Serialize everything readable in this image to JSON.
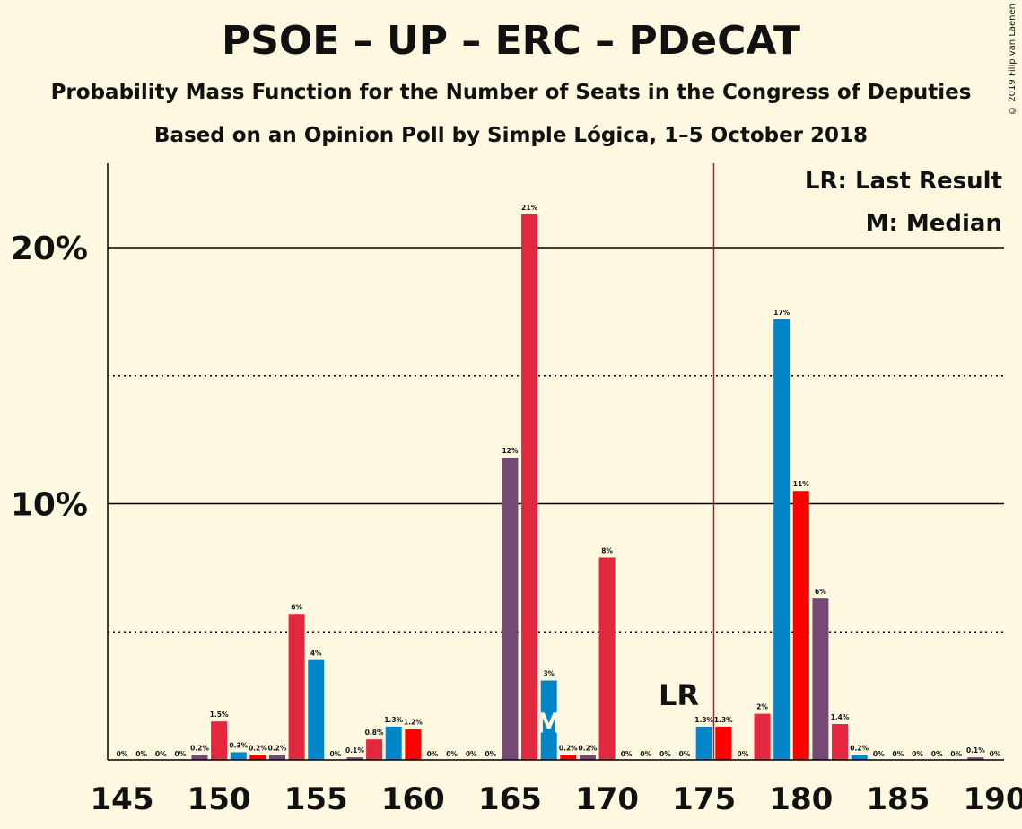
{
  "copyright": "© 2019 Filip van Laenen",
  "chart_data": {
    "type": "bar",
    "title": "PSOE – UP – ERC – PDeCAT",
    "subtitle": "Probability Mass Function for the Number of Seats in the Congress of Deputies",
    "subtitle2": "Based on an Opinion Poll by Simple Lógica, 1–5 October 2018",
    "xlabel": "",
    "ylabel": "",
    "xlim": [
      145,
      190
    ],
    "ylim": [
      0,
      23.3
    ],
    "x_ticks": [
      "145",
      "150",
      "155",
      "160",
      "165",
      "170",
      "175",
      "180",
      "185",
      "190"
    ],
    "y_ticks": [
      {
        "value": 10,
        "label": "10%"
      },
      {
        "value": 20,
        "label": "20%"
      }
    ],
    "dotted_lines": [
      5,
      15
    ],
    "colors": [
      "#e3273f",
      "#0285c9",
      "#ff0000",
      "#744a75"
    ],
    "bars": [
      {
        "seats": 145,
        "value": 0,
        "label": "0%",
        "color": 3
      },
      {
        "seats": 146,
        "value": 0,
        "label": "0%",
        "color": 0
      },
      {
        "seats": 147,
        "value": 0,
        "label": "0%",
        "color": 1
      },
      {
        "seats": 148,
        "value": 0,
        "label": "0%",
        "color": 2
      },
      {
        "seats": 149,
        "value": 0.2,
        "label": "0.2%",
        "color": 3
      },
      {
        "seats": 150,
        "value": 1.5,
        "label": "1.5%",
        "color": 0
      },
      {
        "seats": 151,
        "value": 0.3,
        "label": "0.3%",
        "color": 1
      },
      {
        "seats": 152,
        "value": 0.2,
        "label": "0.2%",
        "color": 2
      },
      {
        "seats": 153,
        "value": 0.2,
        "label": "0.2%",
        "color": 3
      },
      {
        "seats": 154,
        "value": 5.7,
        "label": "6%",
        "color": 0
      },
      {
        "seats": 155,
        "value": 3.9,
        "label": "4%",
        "color": 1
      },
      {
        "seats": 156,
        "value": 0,
        "label": "0%",
        "color": 2
      },
      {
        "seats": 157,
        "value": 0.1,
        "label": "0.1%",
        "color": 3
      },
      {
        "seats": 158,
        "value": 0.8,
        "label": "0.8%",
        "color": 0
      },
      {
        "seats": 159,
        "value": 1.3,
        "label": "1.3%",
        "color": 1
      },
      {
        "seats": 160,
        "value": 1.2,
        "label": "1.2%",
        "color": 2
      },
      {
        "seats": 161,
        "value": 0,
        "label": "0%",
        "color": 3
      },
      {
        "seats": 162,
        "value": 0,
        "label": "0%",
        "color": 0
      },
      {
        "seats": 163,
        "value": 0,
        "label": "0%",
        "color": 1
      },
      {
        "seats": 164,
        "value": 0,
        "label": "0%",
        "color": 2
      },
      {
        "seats": 165,
        "value": 11.8,
        "label": "12%",
        "color": 3
      },
      {
        "seats": 166,
        "value": 21.3,
        "label": "21%",
        "color": 0
      },
      {
        "seats": 167,
        "value": 3.1,
        "label": "3%",
        "color": 1
      },
      {
        "seats": 168,
        "value": 0.2,
        "label": "0.2%",
        "color": 2
      },
      {
        "seats": 169,
        "value": 0.2,
        "label": "0.2%",
        "color": 3
      },
      {
        "seats": 170,
        "value": 7.9,
        "label": "8%",
        "color": 0
      },
      {
        "seats": 171,
        "value": 0,
        "label": "0%",
        "color": 1
      },
      {
        "seats": 172,
        "value": 0,
        "label": "0%",
        "color": 2
      },
      {
        "seats": 173,
        "value": 0,
        "label": "0%",
        "color": 3
      },
      {
        "seats": 174,
        "value": 0,
        "label": "0%",
        "color": 0
      },
      {
        "seats": 175,
        "value": 1.3,
        "label": "1.3%",
        "color": 1
      },
      {
        "seats": 176,
        "value": 1.3,
        "label": "1.3%",
        "color": 2
      },
      {
        "seats": 177,
        "value": 0,
        "label": "0%",
        "color": 3
      },
      {
        "seats": 178,
        "value": 1.8,
        "label": "2%",
        "color": 0
      },
      {
        "seats": 179,
        "value": 17.2,
        "label": "17%",
        "color": 1
      },
      {
        "seats": 180,
        "value": 10.5,
        "label": "11%",
        "color": 2
      },
      {
        "seats": 181,
        "value": 6.3,
        "label": "6%",
        "color": 3
      },
      {
        "seats": 182,
        "value": 1.4,
        "label": "1.4%",
        "color": 0
      },
      {
        "seats": 183,
        "value": 0.2,
        "label": "0.2%",
        "color": 1
      },
      {
        "seats": 184,
        "value": 0,
        "label": "0%",
        "color": 2
      },
      {
        "seats": 185,
        "value": 0,
        "label": "0%",
        "color": 3
      },
      {
        "seats": 186,
        "value": 0,
        "label": "0%",
        "color": 0
      },
      {
        "seats": 187,
        "value": 0,
        "label": "0%",
        "color": 1
      },
      {
        "seats": 188,
        "value": 0,
        "label": "0%",
        "color": 2
      },
      {
        "seats": 189,
        "value": 0.1,
        "label": "0.1%",
        "color": 3
      },
      {
        "seats": 190,
        "value": 0,
        "label": "0%",
        "color": 0
      }
    ],
    "last_result": {
      "seats": 176,
      "label": "LR",
      "color": "#c0142f"
    },
    "median": {
      "seats": 167,
      "label": "M"
    },
    "legend": [
      "LR: Last Result",
      "M: Median"
    ]
  }
}
